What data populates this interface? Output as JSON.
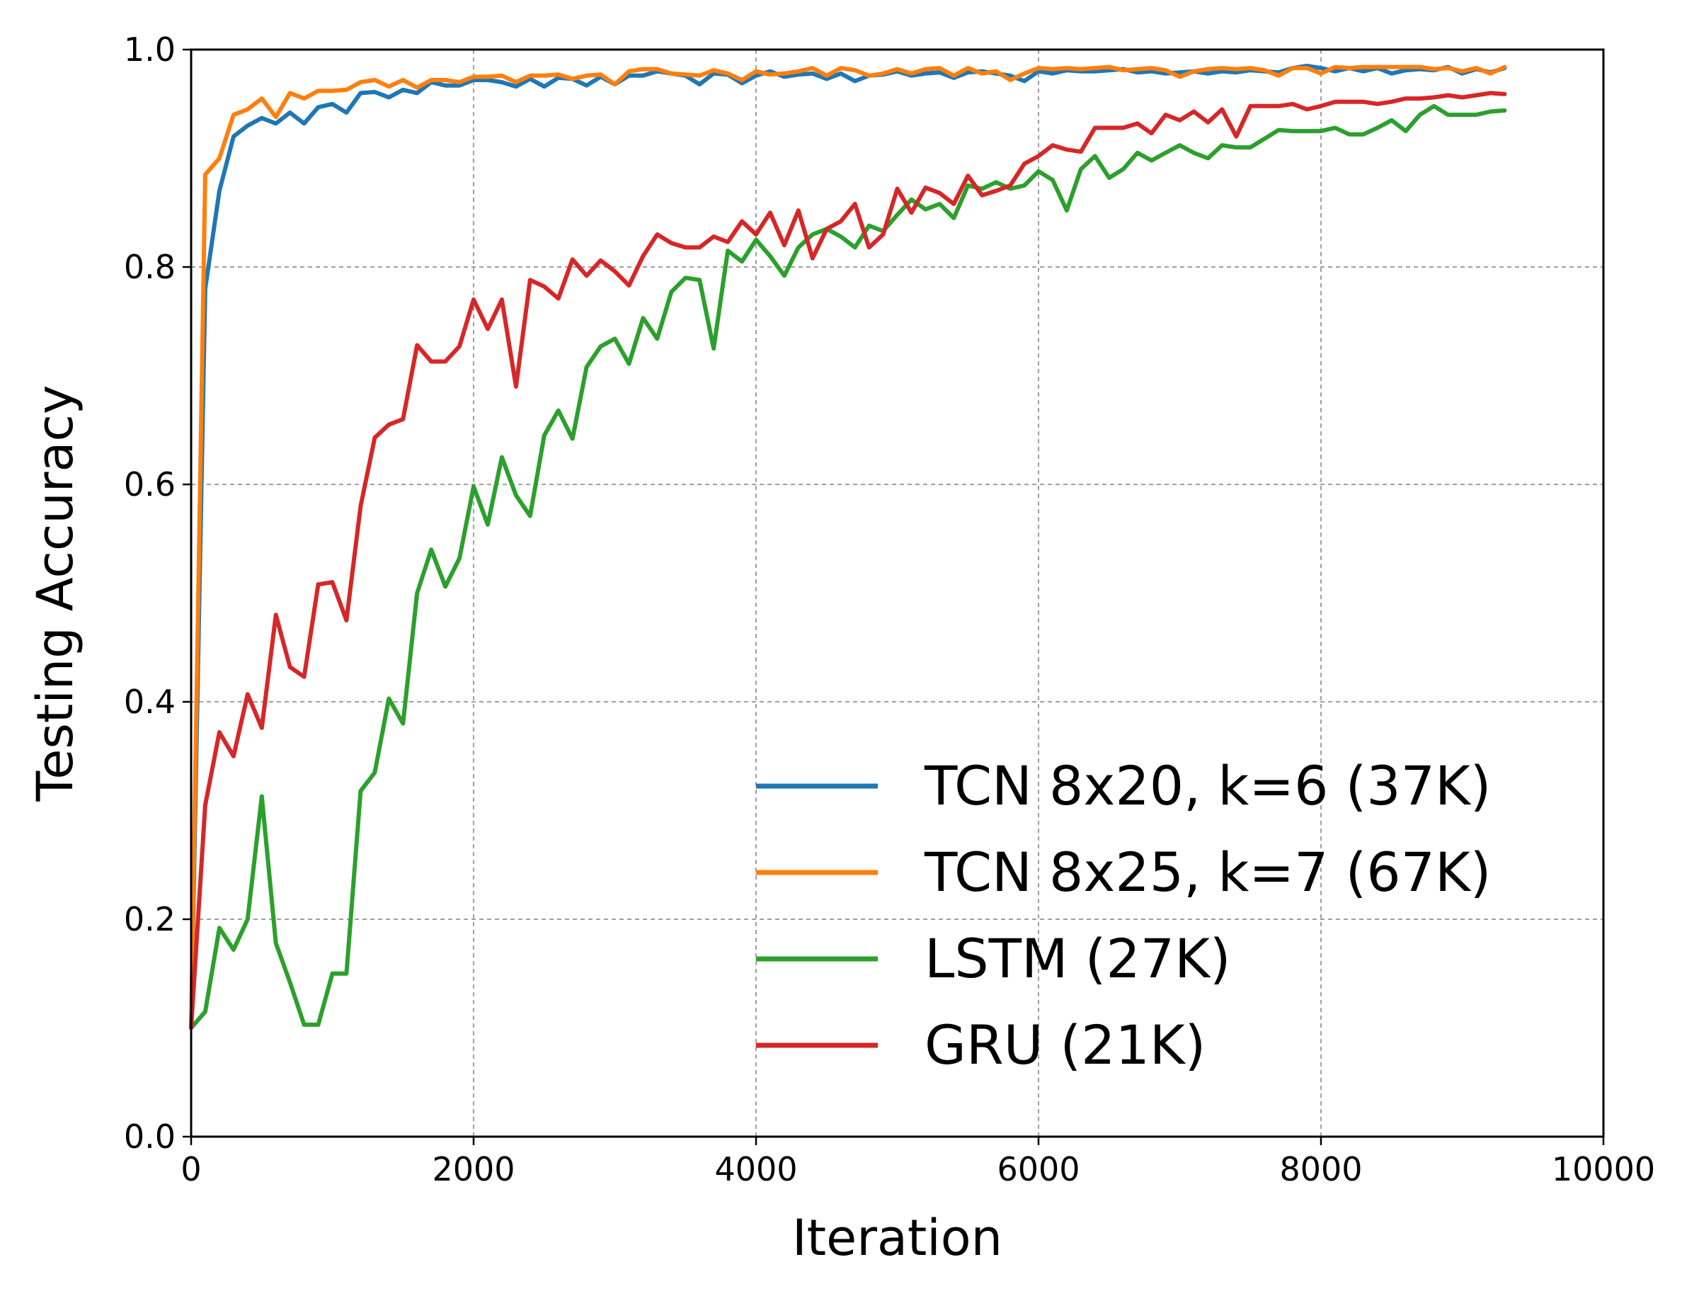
{
  "chart_data": {
    "type": "line",
    "title": "",
    "xlabel": "Iteration",
    "ylabel": "Testing Accuracy",
    "xlim": [
      0,
      10000
    ],
    "ylim": [
      0.0,
      1.0
    ],
    "xticks": [
      "0",
      "2000",
      "4000",
      "6000",
      "8000",
      "10000"
    ],
    "yticks": [
      "0.0",
      "0.2",
      "0.4",
      "0.6",
      "0.8",
      "1.0"
    ],
    "grid": true,
    "legend_position": "lower-right",
    "x": [
      0,
      100,
      200,
      300,
      400,
      500,
      600,
      700,
      800,
      900,
      1000,
      1100,
      1200,
      1300,
      1400,
      1500,
      1600,
      1700,
      1800,
      1900,
      2000,
      2100,
      2200,
      2300,
      2400,
      2500,
      2600,
      2700,
      2800,
      2900,
      3000,
      3100,
      3200,
      3300,
      3400,
      3500,
      3600,
      3700,
      3800,
      3900,
      4000,
      4100,
      4200,
      4300,
      4400,
      4500,
      4600,
      4700,
      4800,
      4900,
      5000,
      5100,
      5200,
      5300,
      5400,
      5500,
      5600,
      5700,
      5800,
      5900,
      6000,
      6100,
      6200,
      6300,
      6400,
      6500,
      6600,
      6700,
      6800,
      6900,
      7000,
      7100,
      7200,
      7300,
      7400,
      7500,
      7600,
      7700,
      7800,
      7900,
      8000,
      8100,
      8200,
      8300,
      8400,
      8500,
      8600,
      8700,
      8800,
      8900,
      9000,
      9100,
      9200,
      9300
    ],
    "series": [
      {
        "name": "TCN 8x20, k=6 (37K)",
        "color": "#1f77b4",
        "values": [
          0.1,
          0.78,
          0.87,
          0.92,
          0.93,
          0.937,
          0.932,
          0.942,
          0.932,
          0.947,
          0.95,
          0.942,
          0.96,
          0.961,
          0.956,
          0.963,
          0.96,
          0.97,
          0.967,
          0.967,
          0.972,
          0.972,
          0.97,
          0.966,
          0.973,
          0.966,
          0.974,
          0.973,
          0.967,
          0.975,
          0.968,
          0.976,
          0.976,
          0.98,
          0.978,
          0.976,
          0.968,
          0.978,
          0.977,
          0.969,
          0.976,
          0.98,
          0.975,
          0.977,
          0.978,
          0.973,
          0.978,
          0.971,
          0.976,
          0.977,
          0.98,
          0.976,
          0.978,
          0.979,
          0.974,
          0.979,
          0.98,
          0.978,
          0.976,
          0.971,
          0.98,
          0.978,
          0.981,
          0.98,
          0.98,
          0.981,
          0.982,
          0.979,
          0.98,
          0.978,
          0.979,
          0.98,
          0.978,
          0.98,
          0.979,
          0.981,
          0.98,
          0.979,
          0.983,
          0.985,
          0.983,
          0.98,
          0.983,
          0.98,
          0.983,
          0.978,
          0.981,
          0.982,
          0.981,
          0.984,
          0.978,
          0.982,
          0.979,
          0.983
        ]
      },
      {
        "name": "TCN 8x25, k=7 (67K)",
        "color": "#ff7f0e",
        "values": [
          0.1,
          0.885,
          0.9,
          0.94,
          0.945,
          0.955,
          0.938,
          0.96,
          0.955,
          0.962,
          0.962,
          0.963,
          0.97,
          0.972,
          0.966,
          0.972,
          0.965,
          0.972,
          0.972,
          0.97,
          0.975,
          0.975,
          0.976,
          0.97,
          0.976,
          0.976,
          0.977,
          0.973,
          0.976,
          0.977,
          0.968,
          0.98,
          0.982,
          0.982,
          0.978,
          0.977,
          0.976,
          0.981,
          0.978,
          0.972,
          0.98,
          0.977,
          0.978,
          0.98,
          0.983,
          0.976,
          0.983,
          0.981,
          0.976,
          0.978,
          0.982,
          0.978,
          0.982,
          0.983,
          0.976,
          0.983,
          0.978,
          0.98,
          0.972,
          0.978,
          0.983,
          0.982,
          0.983,
          0.982,
          0.983,
          0.984,
          0.981,
          0.982,
          0.983,
          0.981,
          0.975,
          0.98,
          0.982,
          0.983,
          0.982,
          0.983,
          0.981,
          0.976,
          0.983,
          0.983,
          0.978,
          0.984,
          0.983,
          0.984,
          0.984,
          0.984,
          0.984,
          0.984,
          0.982,
          0.983,
          0.98,
          0.983,
          0.978,
          0.984
        ]
      },
      {
        "name": "LSTM (27K)",
        "color": "#2ca02c",
        "values": [
          0.1,
          0.115,
          0.192,
          0.172,
          0.2,
          0.313,
          0.178,
          0.142,
          0.103,
          0.103,
          0.15,
          0.15,
          0.318,
          0.335,
          0.403,
          0.38,
          0.5,
          0.54,
          0.506,
          0.532,
          0.598,
          0.563,
          0.625,
          0.59,
          0.571,
          0.645,
          0.668,
          0.642,
          0.708,
          0.727,
          0.734,
          0.711,
          0.753,
          0.734,
          0.777,
          0.79,
          0.788,
          0.725,
          0.815,
          0.805,
          0.825,
          0.81,
          0.792,
          0.818,
          0.83,
          0.835,
          0.828,
          0.818,
          0.838,
          0.833,
          0.848,
          0.862,
          0.853,
          0.858,
          0.845,
          0.875,
          0.872,
          0.878,
          0.872,
          0.875,
          0.888,
          0.88,
          0.852,
          0.89,
          0.902,
          0.882,
          0.89,
          0.905,
          0.898,
          0.905,
          0.912,
          0.905,
          0.9,
          0.912,
          0.91,
          0.91,
          0.918,
          0.926,
          0.925,
          0.925,
          0.925,
          0.928,
          0.922,
          0.922,
          0.928,
          0.935,
          0.925,
          0.94,
          0.948,
          0.94,
          0.94,
          0.94,
          0.943,
          0.944
        ]
      },
      {
        "name": "GRU (21K)",
        "color": "#d62728",
        "values": [
          0.1,
          0.305,
          0.372,
          0.35,
          0.407,
          0.376,
          0.48,
          0.432,
          0.423,
          0.508,
          0.51,
          0.475,
          0.58,
          0.643,
          0.655,
          0.66,
          0.728,
          0.713,
          0.713,
          0.727,
          0.77,
          0.743,
          0.77,
          0.69,
          0.788,
          0.782,
          0.771,
          0.807,
          0.792,
          0.806,
          0.796,
          0.783,
          0.81,
          0.83,
          0.822,
          0.818,
          0.818,
          0.828,
          0.823,
          0.842,
          0.83,
          0.85,
          0.82,
          0.852,
          0.808,
          0.835,
          0.842,
          0.858,
          0.818,
          0.83,
          0.872,
          0.85,
          0.873,
          0.868,
          0.858,
          0.884,
          0.866,
          0.87,
          0.875,
          0.895,
          0.902,
          0.912,
          0.908,
          0.906,
          0.928,
          0.928,
          0.928,
          0.932,
          0.923,
          0.94,
          0.935,
          0.943,
          0.933,
          0.945,
          0.92,
          0.948,
          0.948,
          0.948,
          0.95,
          0.945,
          0.948,
          0.952,
          0.952,
          0.952,
          0.95,
          0.952,
          0.955,
          0.955,
          0.956,
          0.958,
          0.956,
          0.958,
          0.96,
          0.959
        ]
      }
    ]
  }
}
